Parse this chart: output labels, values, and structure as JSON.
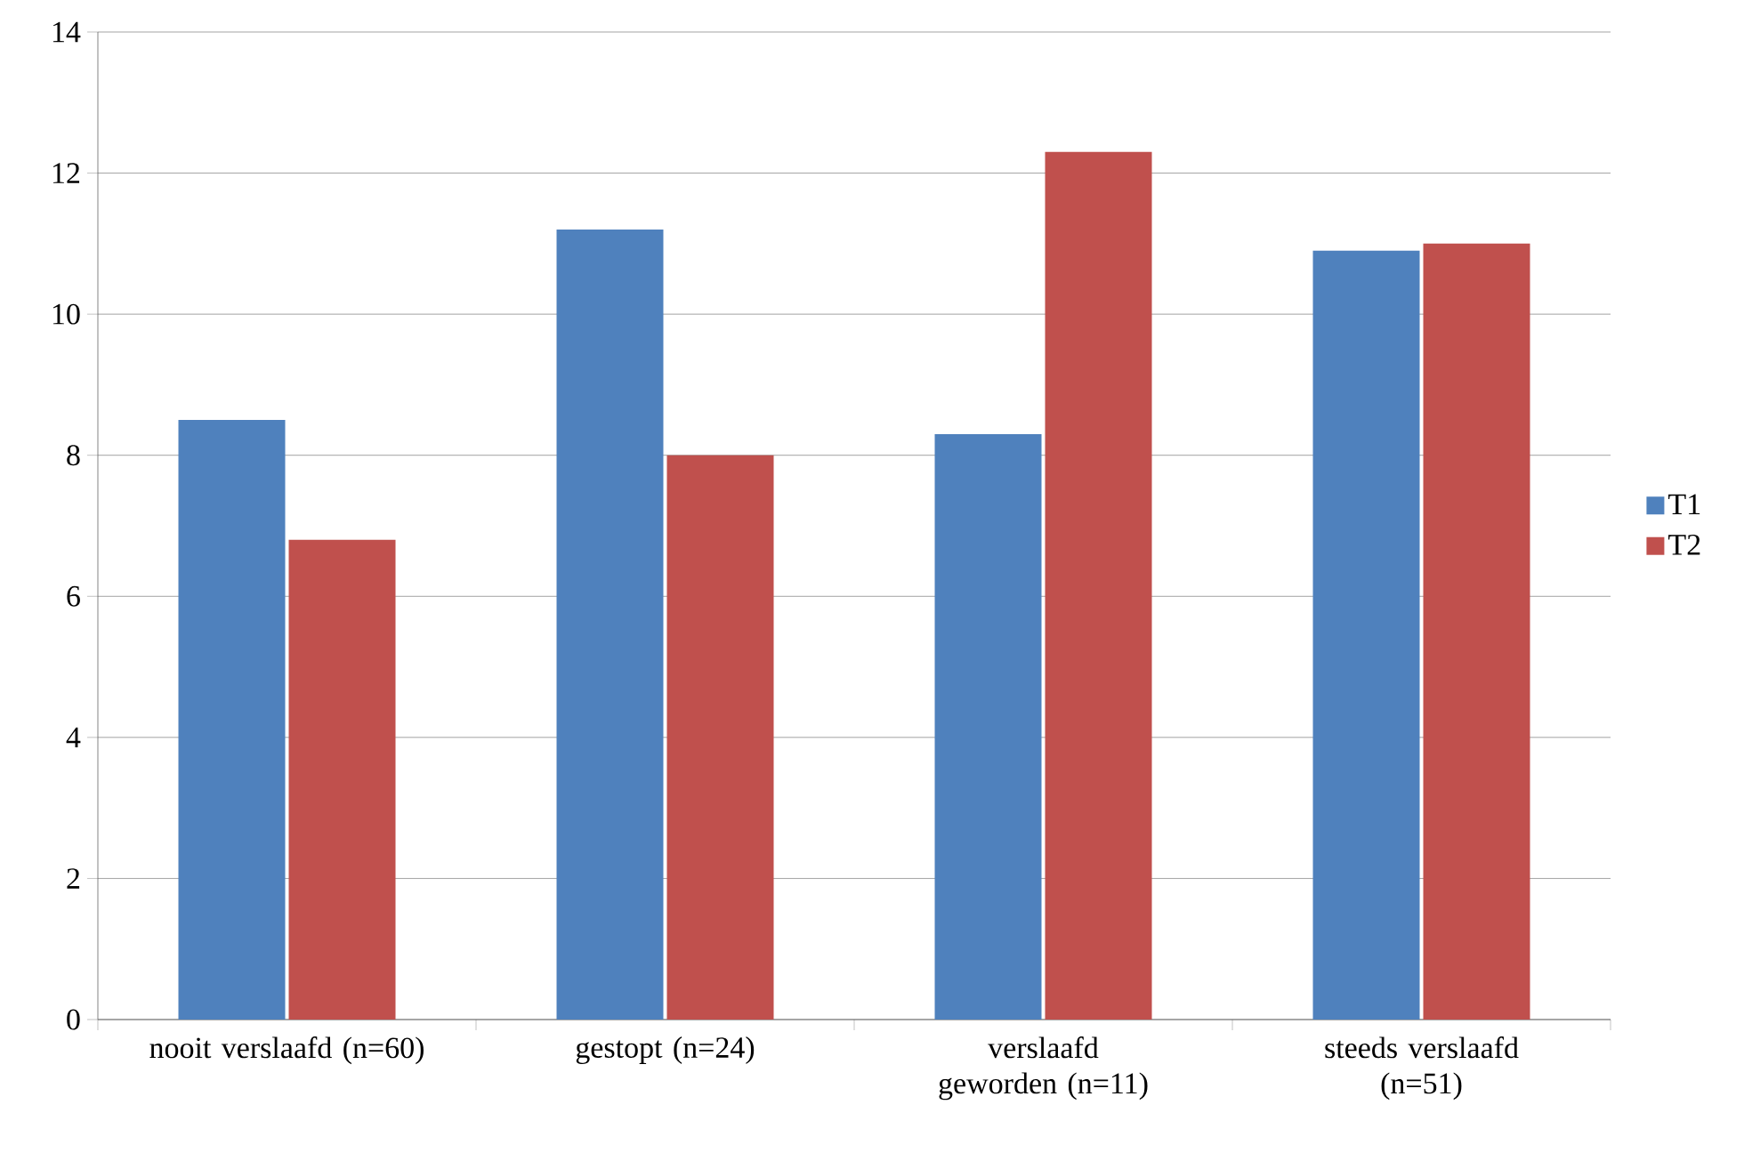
{
  "chart_data": {
    "type": "bar",
    "categories": [
      "nooit verslaafd (n=60)",
      "gestopt (n=24)",
      "verslaafd geworden (n=11)",
      "steeds verslaafd (n=51)"
    ],
    "series": [
      {
        "name": "T1",
        "color": "#4f81bd",
        "values": [
          8.5,
          11.2,
          8.3,
          10.9
        ]
      },
      {
        "name": "T2",
        "color": "#c0504d",
        "values": [
          6.8,
          8.0,
          12.3,
          11.0
        ]
      }
    ],
    "ylim": [
      0,
      14
    ],
    "yticks": [
      0,
      2,
      4,
      6,
      8,
      10,
      12,
      14
    ],
    "grid": "y",
    "legend": "right"
  }
}
